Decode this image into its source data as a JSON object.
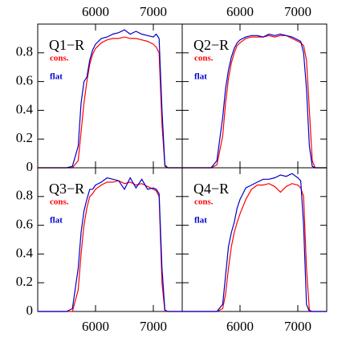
{
  "chart_data": [
    {
      "type": "line",
      "title": "Q1−R",
      "xlim": [
        5000,
        7500
      ],
      "xticks": [
        6000,
        7000
      ],
      "xtick_side": "top",
      "ylim": [
        0,
        1
      ],
      "yticks": [
        0,
        0.2,
        0.4,
        0.6,
        0.8
      ],
      "ytick_labels": true,
      "x": [
        5000,
        5500,
        5600,
        5700,
        5750,
        5800,
        5850,
        5900,
        5950,
        6000,
        6100,
        6200,
        6300,
        6400,
        6500,
        6600,
        6700,
        6800,
        6900,
        7000,
        7050,
        7100,
        7150,
        7200,
        7250,
        7300,
        7500
      ],
      "series": [
        {
          "name": "cons.",
          "color": "#ff0000",
          "values": [
            0,
            0,
            0,
            0.05,
            0.25,
            0.45,
            0.6,
            0.72,
            0.79,
            0.83,
            0.87,
            0.89,
            0.9,
            0.9,
            0.91,
            0.9,
            0.9,
            0.89,
            0.88,
            0.86,
            0.84,
            0.8,
            0.3,
            0.01,
            0,
            0,
            0
          ]
        },
        {
          "name": "flat",
          "color": "#0000cc",
          "values": [
            0,
            0,
            0.01,
            0.15,
            0.45,
            0.6,
            0.63,
            0.75,
            0.82,
            0.86,
            0.9,
            0.91,
            0.93,
            0.94,
            0.96,
            0.93,
            0.95,
            0.93,
            0.92,
            0.91,
            0.93,
            0.9,
            0.4,
            0.02,
            0,
            0,
            0
          ]
        }
      ]
    },
    {
      "type": "line",
      "title": "Q2−R",
      "xlim": [
        5000,
        7500
      ],
      "xticks": [
        6000,
        7000
      ],
      "xtick_side": "top",
      "ylim": [
        0,
        1
      ],
      "yticks": [
        0,
        0.2,
        0.4,
        0.6,
        0.8
      ],
      "ytick_labels": false,
      "x": [
        5000,
        5500,
        5600,
        5700,
        5750,
        5800,
        5850,
        5900,
        5950,
        6000,
        6100,
        6200,
        6300,
        6400,
        6500,
        6600,
        6700,
        6800,
        6900,
        7000,
        7050,
        7100,
        7150,
        7200,
        7250,
        7300,
        7500
      ],
      "series": [
        {
          "name": "cons.",
          "color": "#ff0000",
          "values": [
            0,
            0,
            0.02,
            0.22,
            0.45,
            0.62,
            0.73,
            0.8,
            0.85,
            0.87,
            0.9,
            0.91,
            0.91,
            0.91,
            0.92,
            0.91,
            0.92,
            0.92,
            0.9,
            0.88,
            0.87,
            0.85,
            0.75,
            0.4,
            0.05,
            0,
            0
          ]
        },
        {
          "name": "flat",
          "color": "#0000cc",
          "values": [
            0,
            0,
            0.05,
            0.35,
            0.55,
            0.68,
            0.77,
            0.83,
            0.87,
            0.89,
            0.91,
            0.92,
            0.92,
            0.91,
            0.93,
            0.92,
            0.93,
            0.92,
            0.91,
            0.89,
            0.88,
            0.8,
            0.55,
            0.15,
            0.01,
            0,
            0
          ]
        }
      ]
    },
    {
      "type": "line",
      "title": "Q3−R",
      "xlim": [
        5000,
        7500
      ],
      "xticks": [
        6000,
        7000
      ],
      "xtick_side": "bottom",
      "ylim": [
        0,
        1
      ],
      "yticks": [
        0,
        0.2,
        0.4,
        0.6,
        0.8
      ],
      "ytick_labels": true,
      "x": [
        5000,
        5500,
        5600,
        5700,
        5750,
        5800,
        5850,
        5900,
        5950,
        6000,
        6100,
        6200,
        6300,
        6400,
        6500,
        6600,
        6700,
        6800,
        6900,
        7000,
        7050,
        7100,
        7150,
        7200,
        7250,
        7300,
        7500
      ],
      "series": [
        {
          "name": "cons.",
          "color": "#ff0000",
          "values": [
            0,
            0,
            0,
            0.15,
            0.4,
            0.6,
            0.72,
            0.8,
            0.82,
            0.85,
            0.88,
            0.9,
            0.9,
            0.91,
            0.89,
            0.9,
            0.88,
            0.89,
            0.87,
            0.85,
            0.84,
            0.8,
            0.2,
            0,
            0,
            0,
            0
          ]
        },
        {
          "name": "flat",
          "color": "#0000cc",
          "values": [
            0,
            0,
            0.02,
            0.3,
            0.55,
            0.7,
            0.78,
            0.85,
            0.85,
            0.88,
            0.9,
            0.93,
            0.92,
            0.91,
            0.85,
            0.93,
            0.86,
            0.92,
            0.85,
            0.86,
            0.85,
            0.82,
            0.3,
            0.01,
            0,
            0,
            0
          ]
        }
      ]
    },
    {
      "type": "line",
      "title": "Q4−R",
      "xlim": [
        5000,
        7500
      ],
      "xticks": [
        6000,
        7000
      ],
      "xtick_side": "bottom",
      "ylim": [
        0,
        1
      ],
      "yticks": [
        0,
        0.2,
        0.4,
        0.6,
        0.8
      ],
      "ytick_labels": false,
      "x": [
        5000,
        5500,
        5600,
        5700,
        5750,
        5800,
        5850,
        5900,
        5950,
        6000,
        6100,
        6200,
        6300,
        6400,
        6500,
        6600,
        6700,
        6800,
        6900,
        7000,
        7050,
        7100,
        7150,
        7200,
        7250,
        7300,
        7500
      ],
      "series": [
        {
          "name": "cons.",
          "color": "#ff0000",
          "values": [
            0,
            0,
            0,
            0.02,
            0.12,
            0.3,
            0.45,
            0.55,
            0.62,
            0.68,
            0.78,
            0.85,
            0.88,
            0.88,
            0.89,
            0.87,
            0.83,
            0.87,
            0.89,
            0.88,
            0.86,
            0.8,
            0.3,
            0.01,
            0,
            0,
            0
          ]
        },
        {
          "name": "flat",
          "color": "#0000cc",
          "values": [
            0,
            0,
            0,
            0.05,
            0.25,
            0.45,
            0.55,
            0.62,
            0.72,
            0.78,
            0.86,
            0.88,
            0.9,
            0.92,
            0.92,
            0.93,
            0.95,
            0.94,
            0.96,
            0.93,
            0.91,
            0.6,
            0.05,
            0,
            0,
            0,
            0
          ]
        }
      ]
    }
  ]
}
